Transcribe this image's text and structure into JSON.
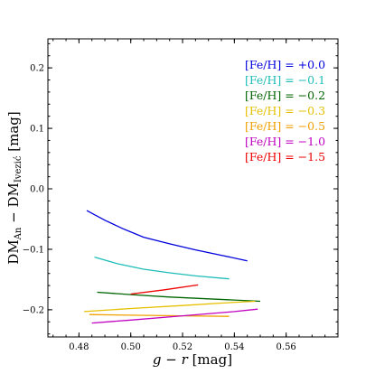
{
  "chart_data": {
    "type": "line",
    "xlabel": "g − r [mag]",
    "ylabel": "DM_An − DM_Ivezić [mag]",
    "ylabel_parts": {
      "main1": "DM",
      "sub1": "An",
      "mid": " − DM",
      "sub2": "Ivezić",
      "end": " [mag]"
    },
    "xlim": [
      0.468,
      0.58
    ],
    "ylim": [
      -0.245,
      0.248
    ],
    "xticks": [
      0.48,
      0.5,
      0.52,
      0.54,
      0.56
    ],
    "xtick_labels": [
      "0.48",
      "0.50",
      "0.52",
      "0.54",
      "0.56"
    ],
    "yticks": [
      -0.2,
      -0.1,
      0.0,
      0.1,
      0.2
    ],
    "ytick_labels": [
      "−0.2",
      "−0.1",
      "0.0",
      "0.1",
      "0.2"
    ],
    "grid": false,
    "legend_position": "top-right",
    "series": [
      {
        "name": "[Fe/H] = +0.0",
        "color": "#0000dd",
        "points": [
          [
            0.483,
            -0.036
          ],
          [
            0.49,
            -0.052
          ],
          [
            0.497,
            -0.066
          ],
          [
            0.505,
            -0.08
          ],
          [
            0.515,
            -0.091
          ],
          [
            0.525,
            -0.101
          ],
          [
            0.535,
            -0.11
          ],
          [
            0.545,
            -0.119
          ]
        ]
      },
      {
        "name": "[Fe/H] = −0.1",
        "color": "#1ebdb9",
        "points": [
          [
            0.486,
            -0.113
          ],
          [
            0.495,
            -0.124
          ],
          [
            0.505,
            -0.133
          ],
          [
            0.515,
            -0.139
          ],
          [
            0.525,
            -0.144
          ],
          [
            0.538,
            -0.149
          ]
        ]
      },
      {
        "name": "[Fe/H] = −0.2",
        "color": "#006600",
        "points": [
          [
            0.487,
            -0.171
          ],
          [
            0.5,
            -0.175
          ],
          [
            0.515,
            -0.179
          ],
          [
            0.53,
            -0.182
          ],
          [
            0.55,
            -0.186
          ]
        ]
      },
      {
        "name": "[Fe/H] = −0.3",
        "color": "#e6c000",
        "points": [
          [
            0.482,
            -0.203
          ],
          [
            0.5,
            -0.198
          ],
          [
            0.52,
            -0.193
          ],
          [
            0.535,
            -0.189
          ],
          [
            0.548,
            -0.186
          ]
        ]
      },
      {
        "name": "[Fe/H] = −0.5",
        "color": "#f0a000",
        "points": [
          [
            0.484,
            -0.208
          ],
          [
            0.5,
            -0.209
          ],
          [
            0.52,
            -0.21
          ],
          [
            0.538,
            -0.211
          ]
        ]
      },
      {
        "name": "[Fe/H] = −1.0",
        "color": "#c000c0",
        "points": [
          [
            0.485,
            -0.222
          ],
          [
            0.5,
            -0.217
          ],
          [
            0.52,
            -0.21
          ],
          [
            0.54,
            -0.203
          ],
          [
            0.549,
            -0.199
          ]
        ]
      },
      {
        "name": "[Fe/H] = −1.5",
        "color": "#ee0000",
        "points": [
          [
            0.5,
            -0.174
          ],
          [
            0.513,
            -0.167
          ],
          [
            0.526,
            -0.159
          ]
        ]
      }
    ]
  }
}
